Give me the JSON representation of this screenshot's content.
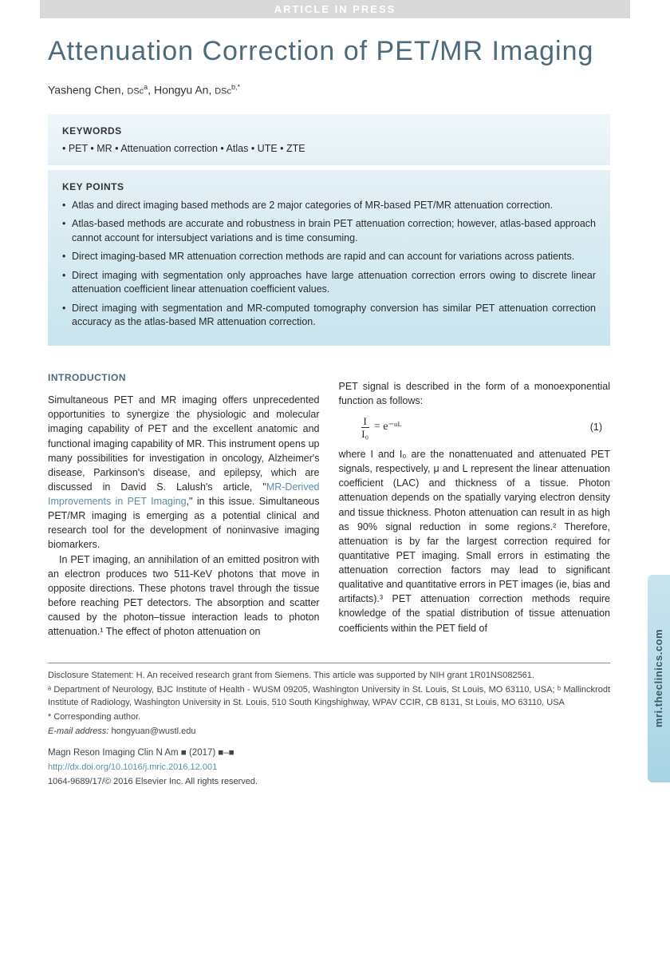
{
  "banner": "ARTICLE IN PRESS",
  "title": "Attenuation Correction of PET/MR Imaging",
  "authors_html": "Yasheng Chen, DScª, Hongyu An, DScᵇ·*",
  "authors": [
    {
      "name": "Yasheng Chen",
      "degree": "DSc",
      "aff": "a"
    },
    {
      "name": "Hongyu An",
      "degree": "DSc",
      "aff": "b,*"
    }
  ],
  "keywords": {
    "heading": "KEYWORDS",
    "items": "• PET • MR • Attenuation correction • Atlas • UTE • ZTE"
  },
  "keypoints": {
    "heading": "KEY POINTS",
    "items": [
      "Atlas and direct imaging based methods are 2 major categories of MR-based PET/MR attenuation correction.",
      "Atlas-based methods are accurate and robustness in brain PET attenuation correction; however, atlas-based approach cannot account for intersubject variations and is time consuming.",
      "Direct imaging-based MR attenuation correction methods are rapid and can account for variations across patients.",
      "Direct imaging with segmentation only approaches have large attenuation correction errors owing to discrete linear attenuation coefficient linear attenuation coefficient values.",
      "Direct imaging with segmentation and MR-computed tomography conversion has similar PET attenuation correction accuracy as the atlas-based MR attenuation correction."
    ]
  },
  "intro_heading": "INTRODUCTION",
  "col1": {
    "p1a": "Simultaneous PET and MR imaging offers unprecedented opportunities to synergize the physiologic and molecular imaging capability of PET and the excellent anatomic and functional imaging capability of MR. This instrument opens up many possibilities for investigation in oncology, Alzheimer's disease, Parkinson's disease, and epilepsy, which are discussed in David S. Lalush's article, \"",
    "p1link": "MR-Derived Improvements in PET Imaging",
    "p1b": ",\" in this issue. Simultaneous PET/MR imaging is emerging as a potential clinical and research tool for the development of noninvasive imaging biomarkers.",
    "p2": "In PET imaging, an annihilation of an emitted positron with an electron produces two 511-KeV photons that move in opposite directions. These photons travel through the tissue before reaching PET detectors. The absorption and scatter caused by the photon–tissue interaction leads to photon attenuation.¹ The effect of photon attenuation on"
  },
  "col2": {
    "p1": "PET signal is described in the form of a monoexponential function as follows:",
    "eq": {
      "num": "I",
      "den": "I₀",
      "rhs": "= e⁻ᵘᴸ",
      "label": "(1)"
    },
    "p2": "where I and I₀ are the nonattenuated and attenuated PET signals, respectively, μ and L represent the linear attenuation coefficient (LAC) and thickness of a tissue. Photon attenuation depends on the spatially varying electron density and tissue thickness. Photon attenuation can result in as high as 90% signal reduction in some regions.² Therefore, attenuation is by far the largest correction required for quantitative PET imaging. Small errors in estimating the attenuation correction factors may lead to significant qualitative and quantitative errors in PET images (ie, bias and artifacts).³ PET attenuation correction methods require knowledge of the spatial distribution of tissue attenuation coefficients within the PET field of"
  },
  "footnotes": {
    "disclosure": "Disclosure Statement: H. An received research grant from Siemens. This article was supported by NIH grant 1R01NS082561.",
    "aff_a": "ᵃ Department of Neurology, BJC Institute of Health - WUSM 09205, Washington University in St. Louis, St Louis, MO 63110, USA; ",
    "aff_b": "ᵇ Mallinckrodt Institute of Radiology, Washington University in St. Louis, 510 South Kingshighway, WPAV CCIR, CB 8131, St Louis, MO 63110, USA",
    "corresponding": "* Corresponding author.",
    "email_label": "E-mail address:",
    "email": "hongyuan@wustl.edu",
    "journal": "Magn Reson Imaging Clin N Am ■ (2017) ■–■",
    "doi": "http://dx.doi.org/10.1016/j.mric.2016.12.001",
    "copyright": "1064-9689/17/© 2016 Elsevier Inc. All rights reserved."
  },
  "side_tab": "mri.theclinics.com",
  "colors": {
    "title_color": "#4d6b7a",
    "box_grad_top": "#e4f0f5",
    "box_grad_bot": "#c8e4ee",
    "link_color": "#5a8fa8",
    "banner_bg": "#d9d9d9"
  }
}
